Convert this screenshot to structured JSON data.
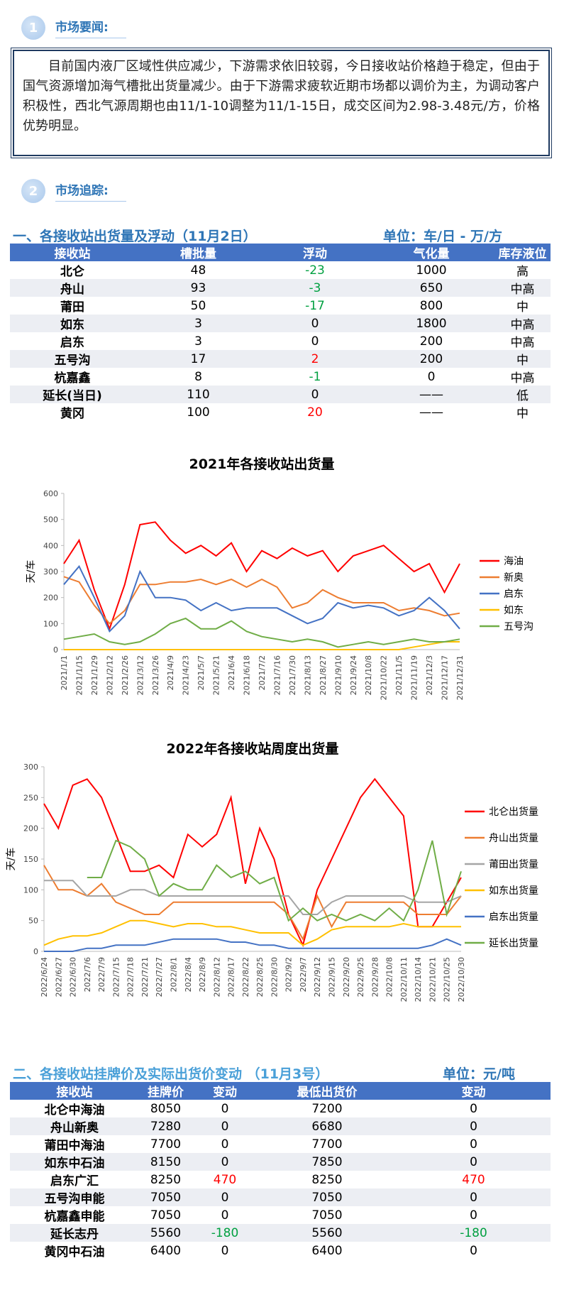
{
  "sections": [
    {
      "number": "1",
      "title": "市场要闻:"
    },
    {
      "number": "2",
      "title": "市场追踪:"
    }
  ],
  "paragraph": "目前国内液厂区域性供应减少，下游需求依旧较弱，今日接收站价格趋于稳定，但由于国气资源增加海气槽批出货量减少。由于下游需求疲软近期市场都以调价为主，为调动客户积极性，西北气源周期也由11/1-10调整为11/1-15日，成交区间为2.98-3.48元/方，价格优势明显。",
  "table1": {
    "title": "一、各接收站出货量及浮动（11月2日）",
    "unit": "单位：车/日 - 万/方",
    "header": [
      "接收站",
      "槽批量",
      "浮动",
      "气化量",
      "库存液位"
    ],
    "rows": [
      [
        "北仑",
        48,
        -23,
        1000,
        "高"
      ],
      [
        "舟山",
        93,
        -3,
        650,
        "中高"
      ],
      [
        "莆田",
        50,
        -17,
        800,
        "中"
      ],
      [
        "如东",
        3,
        0,
        1800,
        "中高"
      ],
      [
        "启东",
        3,
        0,
        200,
        "中高"
      ],
      [
        "五号沟",
        17,
        2,
        200,
        "中"
      ],
      [
        "杭嘉鑫",
        8,
        -1,
        0,
        "中高"
      ],
      [
        "延长(当日)",
        110,
        0,
        "——",
        "低"
      ],
      [
        "黄冈",
        100,
        20,
        "——",
        "中"
      ]
    ]
  },
  "chart_data": [
    {
      "type": "line",
      "title": "2021年各接收站出货量",
      "y_label": "天/车",
      "categories": [
        "2021/1/1",
        "2021/1/15",
        "2021/1/29",
        "2021/2/12",
        "2021/2/26",
        "2021/3/12",
        "2021/3/26",
        "2021/4/9",
        "2021/4/23",
        "2021/5/7",
        "2021/5/21",
        "2021/6/4",
        "2021/6/18",
        "2021/7/2",
        "2021/7/16",
        "2021/7/30",
        "2021/8/13",
        "2021/8/27",
        "2021/9/10",
        "2021/9/24",
        "2021/10/8",
        "2021/10/22",
        "2021/11/5",
        "2021/11/19",
        "2021/12/3",
        "2021/12/17",
        "2021/12/31"
      ],
      "ylim": [
        0,
        600
      ],
      "yticks": [
        0,
        100,
        200,
        300,
        400,
        500,
        600
      ],
      "series": [
        {
          "name": "海油",
          "color": "#ff0000",
          "values": [
            330,
            420,
            230,
            80,
            250,
            480,
            490,
            420,
            370,
            400,
            360,
            410,
            300,
            380,
            350,
            390,
            360,
            380,
            300,
            360,
            380,
            400,
            350,
            300,
            330,
            220,
            330
          ]
        },
        {
          "name": "新奥",
          "color": "#ed7d31",
          "values": [
            280,
            260,
            170,
            100,
            150,
            250,
            250,
            260,
            260,
            270,
            250,
            270,
            240,
            270,
            240,
            160,
            180,
            230,
            200,
            180,
            180,
            180,
            150,
            160,
            150,
            130,
            140
          ]
        },
        {
          "name": "启东",
          "color": "#4472c4",
          "values": [
            250,
            320,
            200,
            70,
            130,
            300,
            200,
            200,
            190,
            150,
            180,
            150,
            160,
            160,
            160,
            130,
            100,
            120,
            180,
            160,
            170,
            160,
            130,
            150,
            200,
            150,
            80
          ]
        },
        {
          "name": "如东",
          "color": "#ffc000",
          "values": [
            0,
            0,
            0,
            0,
            0,
            0,
            0,
            0,
            0,
            0,
            0,
            0,
            0,
            0,
            0,
            0,
            0,
            0,
            0,
            0,
            0,
            0,
            0,
            10,
            20,
            30,
            30
          ]
        },
        {
          "name": "五号沟",
          "color": "#70ad47",
          "values": [
            40,
            50,
            60,
            30,
            20,
            30,
            60,
            100,
            120,
            80,
            80,
            110,
            70,
            50,
            40,
            30,
            40,
            30,
            10,
            20,
            30,
            20,
            30,
            40,
            30,
            30,
            40
          ]
        }
      ]
    },
    {
      "type": "line",
      "title": "2022年各接收站周度出货量",
      "y_label": "天/车",
      "categories": [
        "2022/6/24",
        "2022/6/27",
        "2022/6/30",
        "2022/7/6",
        "2022/7/9",
        "2022/7/15",
        "2022/7/18",
        "2022/7/21",
        "2022/7/27",
        "2022/8/1",
        "2022/8/4",
        "2022/8/9",
        "2022/8/12",
        "2022/8/17",
        "2022/8/22",
        "2022/8/25",
        "2022/8/30",
        "2022/9/2",
        "2022/9/7",
        "2022/9/12",
        "2022/9/15",
        "2022/9/20",
        "2022/9/25",
        "2022/9/28",
        "2022/10/8",
        "2022/10/11",
        "2022/10/14",
        "2022/10/21",
        "2022/10/25",
        "2022/10/30"
      ],
      "ylim": [
        0,
        300
      ],
      "yticks": [
        0,
        50,
        100,
        150,
        200,
        250,
        300
      ],
      "series": [
        {
          "name": "北仑出货量",
          "color": "#ff0000",
          "values": [
            240,
            200,
            270,
            280,
            250,
            190,
            130,
            130,
            140,
            120,
            190,
            170,
            190,
            250,
            110,
            200,
            150,
            60,
            10,
            100,
            150,
            200,
            250,
            280,
            250,
            220,
            40,
            40,
            80,
            120
          ]
        },
        {
          "name": "舟山出货量",
          "color": "#ed7d31",
          "values": [
            140,
            100,
            100,
            90,
            110,
            80,
            70,
            60,
            60,
            80,
            80,
            80,
            80,
            80,
            80,
            80,
            80,
            60,
            20,
            90,
            40,
            80,
            80,
            80,
            80,
            80,
            60,
            60,
            60,
            90
          ]
        },
        {
          "name": "莆田出货量",
          "color": "#a5a5a5",
          "values": [
            115,
            115,
            115,
            90,
            90,
            90,
            100,
            100,
            90,
            90,
            90,
            90,
            90,
            90,
            90,
            90,
            90,
            90,
            60,
            60,
            80,
            90,
            90,
            90,
            90,
            90,
            80,
            80,
            80,
            90
          ]
        },
        {
          "name": "如东出货量",
          "color": "#ffc000",
          "values": [
            10,
            20,
            25,
            25,
            30,
            40,
            50,
            50,
            45,
            40,
            45,
            45,
            40,
            40,
            35,
            30,
            30,
            30,
            10,
            20,
            35,
            40,
            40,
            40,
            40,
            45,
            40,
            40,
            40,
            40
          ]
        },
        {
          "name": "启东出货量",
          "color": "#4472c4",
          "values": [
            0,
            0,
            0,
            5,
            5,
            10,
            10,
            10,
            15,
            20,
            20,
            20,
            20,
            15,
            15,
            10,
            10,
            5,
            5,
            5,
            5,
            5,
            5,
            5,
            5,
            5,
            5,
            10,
            20,
            10
          ]
        },
        {
          "name": "延长出货量",
          "color": "#70ad47",
          "values": [
            null,
            null,
            null,
            120,
            120,
            180,
            170,
            150,
            90,
            110,
            100,
            100,
            140,
            120,
            130,
            110,
            120,
            50,
            70,
            50,
            60,
            50,
            60,
            50,
            70,
            50,
            100,
            180,
            60,
            130
          ]
        }
      ]
    }
  ],
  "table2": {
    "title": "二、各接收站挂牌价及实际出货价变动 （11月3号）",
    "unit": "单位：元/吨",
    "header": [
      "接收站",
      "挂牌价",
      "变动",
      "最低出货价",
      "变动"
    ],
    "rows": [
      [
        "北仑中海油",
        8050,
        0,
        7200,
        0
      ],
      [
        "舟山新奥",
        7280,
        0,
        6680,
        0
      ],
      [
        "莆田中海油",
        7700,
        0,
        7700,
        0
      ],
      [
        "如东中石油",
        8150,
        0,
        7850,
        0
      ],
      [
        "启东广汇",
        8250,
        470,
        8250,
        470
      ],
      [
        "五号沟申能",
        7050,
        0,
        7050,
        0
      ],
      [
        "杭嘉鑫申能",
        7050,
        0,
        7050,
        0
      ],
      [
        "延长志丹",
        5560,
        -180,
        5560,
        -180
      ],
      [
        "黄冈中石油",
        6400,
        0,
        6400,
        0
      ]
    ]
  }
}
